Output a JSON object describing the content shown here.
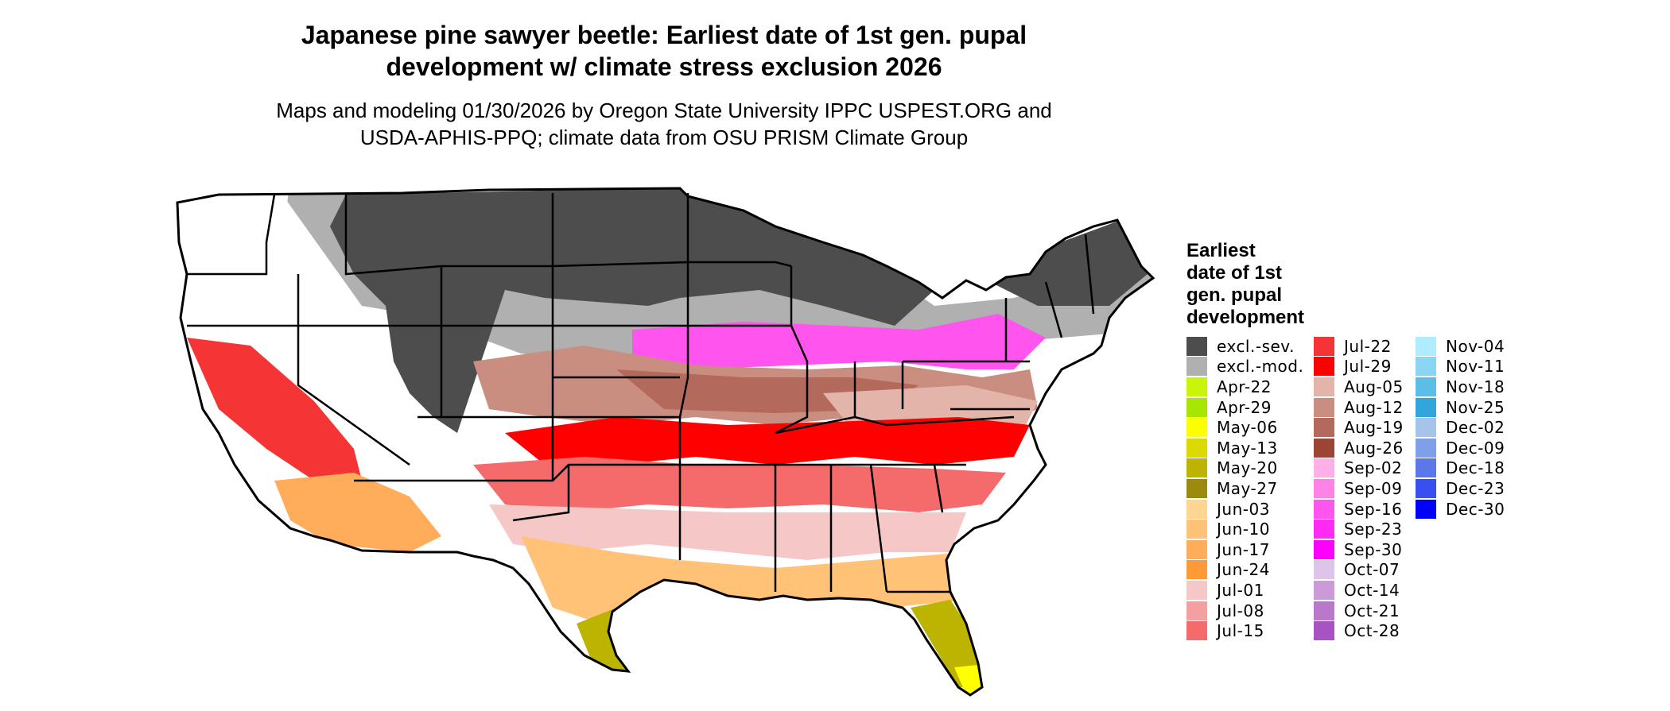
{
  "title": {
    "line1": "Japanese pine sawyer beetle: Earliest date of 1st gen. pupal",
    "line2": "development w/ climate stress exclusion 2026"
  },
  "subtitle": {
    "line1": "Maps and modeling 01/30/2026 by Oregon State University IPPC USPEST.ORG and",
    "line2": "USDA-APHIS-PPQ; climate data from OSU PRISM Climate Group"
  },
  "legend": {
    "title": [
      "Earliest",
      "date of 1st",
      "gen. pupal",
      "development"
    ],
    "columns": [
      [
        {
          "label": "excl.-sev.",
          "color": "#4d4d4d"
        },
        {
          "label": "excl.-mod.",
          "color": "#b0b0b0"
        },
        {
          "label": "Apr-22",
          "color": "#c8f50a"
        },
        {
          "label": "Apr-29",
          "color": "#a6e600"
        },
        {
          "label": "May-06",
          "color": "#ffff00"
        },
        {
          "label": "May-13",
          "color": "#dada00"
        },
        {
          "label": "May-20",
          "color": "#bcb400"
        },
        {
          "label": "May-27",
          "color": "#9c8a0e"
        },
        {
          "label": "Jun-03",
          "color": "#ffd591"
        },
        {
          "label": "Jun-10",
          "color": "#ffc277"
        },
        {
          "label": "Jun-17",
          "color": "#ffad5b"
        },
        {
          "label": "Jun-24",
          "color": "#ff9a36"
        },
        {
          "label": "Jul-01",
          "color": "#f5c7c7"
        },
        {
          "label": "Jul-08",
          "color": "#f5a0a0"
        },
        {
          "label": "Jul-15",
          "color": "#f56b6b"
        }
      ],
      [
        {
          "label": "Jul-22",
          "color": "#f53535"
        },
        {
          "label": "Jul-29",
          "color": "#ff0000"
        },
        {
          "label": "Aug-05",
          "color": "#e3b4aa"
        },
        {
          "label": "Aug-12",
          "color": "#c98e80"
        },
        {
          "label": "Aug-19",
          "color": "#b36a5c"
        },
        {
          "label": "Aug-26",
          "color": "#9c4535"
        },
        {
          "label": "Sep-02",
          "color": "#ffb0e6"
        },
        {
          "label": "Sep-09",
          "color": "#ff82e6"
        },
        {
          "label": "Sep-16",
          "color": "#ff55ee"
        },
        {
          "label": "Sep-23",
          "color": "#ff2bf5"
        },
        {
          "label": "Sep-30",
          "color": "#ff00ff"
        },
        {
          "label": "Oct-07",
          "color": "#e0c3e8"
        },
        {
          "label": "Oct-14",
          "color": "#cc9ad8"
        },
        {
          "label": "Oct-21",
          "color": "#bb77cc"
        },
        {
          "label": "Oct-28",
          "color": "#a853c4"
        }
      ],
      [
        {
          "label": "Nov-04",
          "color": "#b0ecff"
        },
        {
          "label": "Nov-11",
          "color": "#8ad6f2"
        },
        {
          "label": "Nov-18",
          "color": "#5cbde6"
        },
        {
          "label": "Nov-25",
          "color": "#30a6db"
        },
        {
          "label": "Dec-02",
          "color": "#a6c3ea"
        },
        {
          "label": "Dec-09",
          "color": "#7f9fe8"
        },
        {
          "label": "Dec-18",
          "color": "#5a78e8"
        },
        {
          "label": "Dec-23",
          "color": "#3850ef"
        },
        {
          "label": "Dec-30",
          "color": "#0000ff"
        }
      ]
    ]
  },
  "map": {
    "colors": {
      "excl_sev": "#4d4d4d",
      "excl_mod": "#b0b0b0",
      "white": "#ffffff",
      "magenta": "#ff55ee",
      "brown_light": "#c98e80",
      "brown": "#b36a5c",
      "pinkish": "#e3b4aa",
      "red": "#ff0000",
      "red2": "#f53535",
      "salmon": "#f56b6b",
      "lightpink": "#f5c7c7",
      "orange": "#ffad5b",
      "orange2": "#ffc277",
      "olive": "#bcb400",
      "olive_dark": "#9c8a0e",
      "yellow": "#ffff00",
      "border": "#000000"
    }
  }
}
